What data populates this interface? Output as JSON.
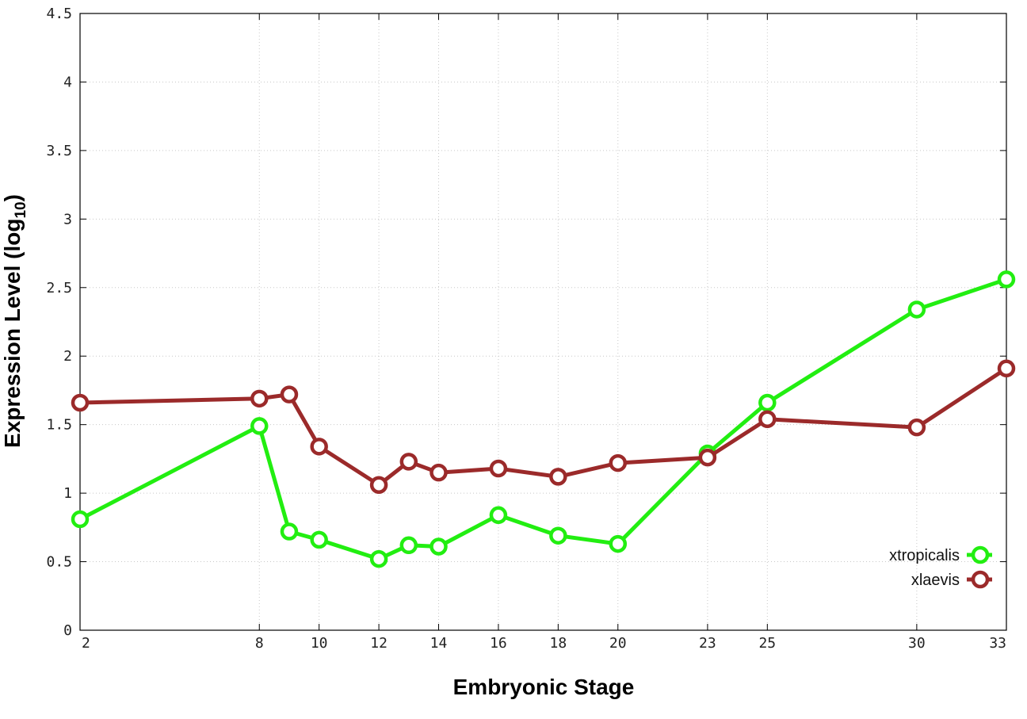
{
  "chart_data": {
    "type": "line",
    "xlabel": "Embryonic Stage",
    "ylabel_main": "Expression Level (log",
    "ylabel_sub": "10",
    "ylabel_close": ")",
    "ylim": [
      0,
      4.5
    ],
    "y_ticks": [
      0,
      0.5,
      1,
      1.5,
      2,
      2.5,
      3,
      3.5,
      4,
      4.5
    ],
    "y_tick_labels": [
      "0",
      "0.5",
      "1",
      "1.5",
      "2",
      "2.5",
      "3",
      "3.5",
      "4",
      "4.5"
    ],
    "x_ticks": [
      2,
      8,
      10,
      12,
      14,
      16,
      18,
      20,
      23,
      25,
      30,
      33
    ],
    "x_tick_labels": [
      "2",
      "8",
      "10",
      "12",
      "14",
      "16",
      "18",
      "20",
      "23",
      "25",
      "30",
      "33"
    ],
    "grid": true,
    "legend_position": "bottom-right",
    "series": [
      {
        "name": "xtropicalis",
        "color": "#22ee11",
        "x": [
          2,
          8,
          9,
          10,
          12,
          13,
          14,
          16,
          18,
          20,
          23,
          25,
          30,
          33
        ],
        "values": [
          0.81,
          1.49,
          0.72,
          0.66,
          0.52,
          0.62,
          0.61,
          0.84,
          0.69,
          0.63,
          1.29,
          1.66,
          2.34,
          2.56
        ]
      },
      {
        "name": "xlaevis",
        "color": "#9b2a2a",
        "x": [
          2,
          8,
          9,
          10,
          12,
          13,
          14,
          16,
          18,
          20,
          23,
          25,
          30,
          33
        ],
        "values": [
          1.66,
          1.69,
          1.72,
          1.34,
          1.06,
          1.23,
          1.15,
          1.18,
          1.12,
          1.22,
          1.26,
          1.54,
          1.48,
          1.91
        ]
      }
    ]
  }
}
